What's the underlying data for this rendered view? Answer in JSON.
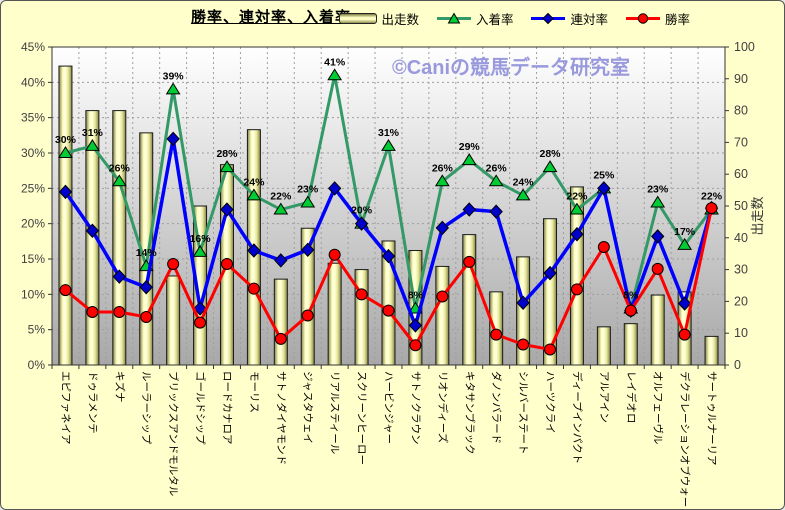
{
  "watermark": "©Caniの競馬データ研究室",
  "chart_data": {
    "type": "combo-bar-line",
    "title": "勝率、連対率、入着率",
    "legend": [
      "出走数",
      "入着率",
      "連対率",
      "勝率"
    ],
    "legend_position": "top",
    "grid": true,
    "categories": [
      "エピファネイア",
      "ドゥラメンテ",
      "キズナ",
      "ルーラーシップ",
      "ブリックスアンドモルタル",
      "ゴールドシップ",
      "ロードカナロア",
      "モーリス",
      "サトノダイヤモンド",
      "ジャスタウェイ",
      "リアルスティール",
      "スクリーンヒーロー",
      "ハービンジャー",
      "サトノクラウン",
      "リオンディーズ",
      "キタサンブラック",
      "ダノンバラード",
      "シルバーステート",
      "ハーツクライ",
      "ディープインパクト",
      "アルアイン",
      "レイデオロ",
      "オルフェーヴル",
      "デクラレーションオブウォー",
      "サートゥルナーリア"
    ],
    "bar_series": {
      "name": "出走数",
      "type": "bar",
      "axis": "right",
      "values": [
        94,
        80,
        80,
        73,
        28,
        50,
        63,
        74,
        27,
        43,
        32,
        30,
        39,
        36,
        31,
        41,
        23,
        34,
        46,
        56,
        12,
        13,
        22,
        23,
        9
      ]
    },
    "line_series": [
      {
        "name": "入着率",
        "type": "line",
        "axis": "left",
        "marker": "triangle",
        "values": [
          30,
          31,
          26,
          14,
          39,
          16,
          28,
          24,
          22,
          23,
          41,
          20,
          31,
          8,
          26,
          29,
          26,
          24,
          28,
          22,
          25,
          8,
          23,
          17,
          22
        ],
        "labels": [
          "30%",
          "31%",
          "26%",
          "14%",
          "39%",
          "16%",
          "28%",
          "24%",
          "22%",
          "23%",
          "41%",
          "20%",
          "31%",
          "8%",
          "26%",
          "29%",
          "26%",
          "24%",
          "28%",
          "22%",
          "25%",
          "8%",
          "23%",
          "17%",
          "22%"
        ]
      },
      {
        "name": "連対率",
        "type": "line",
        "axis": "left",
        "marker": "diamond",
        "values": [
          24.5,
          19,
          12.5,
          11,
          32,
          8,
          22,
          16.2,
          14.8,
          16.3,
          25,
          20,
          15.4,
          5.6,
          19.4,
          22,
          21.7,
          8.8,
          13,
          18.5,
          25,
          7.7,
          18.2,
          8.7,
          22.2
        ]
      },
      {
        "name": "勝率",
        "type": "line",
        "axis": "left",
        "marker": "circle",
        "values": [
          10.6,
          7.5,
          7.5,
          6.8,
          14.3,
          6,
          14.3,
          10.8,
          3.7,
          7,
          15.6,
          10,
          7.7,
          2.8,
          9.7,
          14.6,
          4.3,
          2.9,
          2.2,
          10.7,
          16.7,
          7.7,
          13.6,
          4.3,
          22.2
        ]
      }
    ],
    "left_axis": {
      "min": 0,
      "max": 45,
      "ticks": [
        "45%",
        "40%",
        "35%",
        "30%",
        "25%",
        "20%",
        "15%",
        "10%",
        "5%",
        "0%"
      ]
    },
    "right_axis": {
      "title": "出走数",
      "min": 0,
      "max": 100,
      "ticks": [
        "100",
        "90",
        "80",
        "70",
        "60",
        "50",
        "40",
        "30",
        "20",
        "10",
        "0"
      ]
    },
    "colors": {
      "background": "#FFFFCC",
      "plot_top": "#FFFFFF",
      "plot_bottom": "#A8A8A8",
      "bar_light": "#FFFFC8",
      "bar_dark": "#82824A",
      "place_line": "#339966",
      "place_marker": "#00CC33",
      "quinella_line": "#0000FF",
      "quinella_marker": "#0000CC",
      "win_line": "#FF0000",
      "win_marker": "#FF0000",
      "watermark": "#9999DD",
      "grid": "#9E9E9E",
      "axis_text": "#404040"
    }
  }
}
